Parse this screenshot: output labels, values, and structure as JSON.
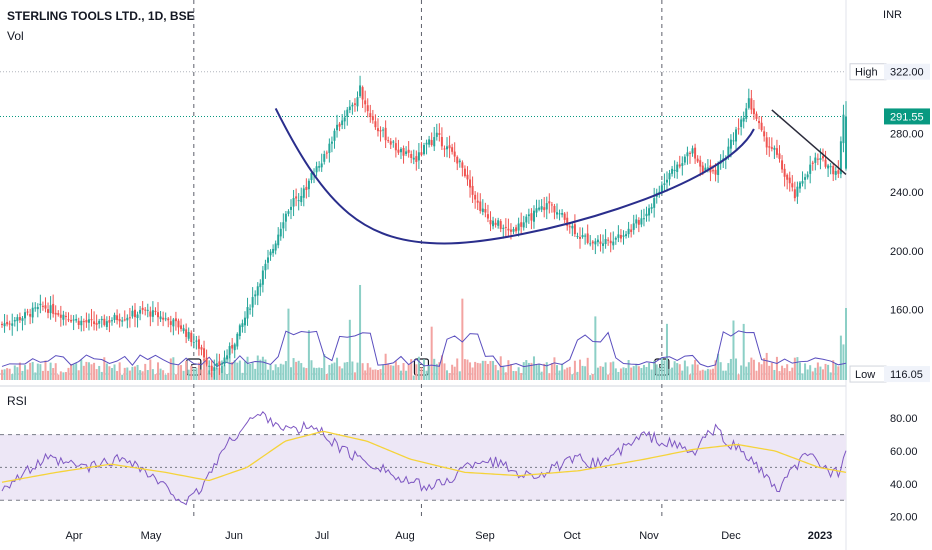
{
  "header": {
    "symbol_line": "STERLING TOOLS LTD., 1D, BSE",
    "vol_label": "Vol",
    "currency": "INR"
  },
  "rsi_label": "RSI",
  "price_labels": {
    "high_tag": "High",
    "high_value": "322.00",
    "low_tag": "Low",
    "low_value": "116.05",
    "last_value": "291.55"
  },
  "events": [
    "E",
    "E",
    "E"
  ],
  "colors": {
    "up": "#26a69a",
    "down": "#ef5350",
    "vol_up": "#8ccfc6",
    "vol_down": "#f3a3a1",
    "trend": "#2a2e8c",
    "rsi_line": "#7e57c2",
    "rsi_ma": "#f5d33a",
    "rsi_band": "#ede7f6",
    "last_price": "#089981"
  },
  "chart_data": [
    {
      "type": "candlestick",
      "title": "STERLING TOOLS LTD., 1D, BSE",
      "y_ticks": [
        "160.00",
        "200.00",
        "240.00",
        "280.00"
      ],
      "ylim": [
        112,
        330
      ],
      "x_ticks": [
        "Apr",
        "May",
        "Jun",
        "Jul",
        "Aug",
        "Sep",
        "Oct",
        "Nov",
        "Dec",
        "2023"
      ],
      "high": 322.0,
      "low": 116.05,
      "last": 291.55,
      "price_path": [
        [
          0,
          150
        ],
        [
          8,
          155
        ],
        [
          16,
          162
        ],
        [
          22,
          158
        ],
        [
          30,
          152
        ],
        [
          38,
          150
        ],
        [
          44,
          154
        ],
        [
          50,
          156
        ],
        [
          56,
          159
        ],
        [
          62,
          155
        ],
        [
          66,
          152
        ],
        [
          70,
          148
        ],
        [
          74,
          140
        ],
        [
          78,
          133
        ],
        [
          80,
          125
        ],
        [
          83,
          119
        ],
        [
          86,
          124
        ],
        [
          90,
          135
        ],
        [
          94,
          150
        ],
        [
          98,
          168
        ],
        [
          102,
          185
        ],
        [
          106,
          202
        ],
        [
          110,
          222
        ],
        [
          114,
          235
        ],
        [
          118,
          240
        ],
        [
          122,
          255
        ],
        [
          126,
          265
        ],
        [
          130,
          280
        ],
        [
          134,
          293
        ],
        [
          138,
          300
        ],
        [
          140,
          310
        ],
        [
          142,
          300
        ],
        [
          146,
          285
        ],
        [
          150,
          278
        ],
        [
          154,
          270
        ],
        [
          158,
          265
        ],
        [
          162,
          262
        ],
        [
          166,
          272
        ],
        [
          170,
          278
        ],
        [
          174,
          270
        ],
        [
          178,
          262
        ],
        [
          182,
          250
        ],
        [
          186,
          232
        ],
        [
          190,
          222
        ],
        [
          194,
          218
        ],
        [
          198,
          213
        ],
        [
          202,
          217
        ],
        [
          206,
          222
        ],
        [
          210,
          228
        ],
        [
          214,
          232
        ],
        [
          218,
          225
        ],
        [
          222,
          218
        ],
        [
          226,
          210
        ],
        [
          230,
          207
        ],
        [
          234,
          206
        ],
        [
          238,
          208
        ],
        [
          242,
          211
        ],
        [
          246,
          215
        ],
        [
          250,
          222
        ],
        [
          254,
          232
        ],
        [
          258,
          246
        ],
        [
          262,
          255
        ],
        [
          266,
          262
        ],
        [
          270,
          268
        ],
        [
          274,
          256
        ],
        [
          278,
          252
        ],
        [
          282,
          262
        ],
        [
          286,
          278
        ],
        [
          290,
          290
        ],
        [
          292,
          302
        ],
        [
          295,
          290
        ],
        [
          298,
          275
        ],
        [
          302,
          268
        ],
        [
          306,
          252
        ],
        [
          310,
          237
        ],
        [
          314,
          252
        ],
        [
          318,
          262
        ],
        [
          322,
          260
        ],
        [
          325,
          255
        ],
        [
          327,
          255
        ],
        [
          329,
          291.55
        ]
      ],
      "trendlines": [
        {
          "from": [
            107,
            297
          ],
          "to": [
            173,
            205
          ]
        },
        {
          "from": [
            173,
            205
          ],
          "to": [
            294,
            283
          ]
        },
        {
          "from": [
            301,
            296
          ],
          "to": [
            330,
            252
          ]
        }
      ]
    },
    {
      "type": "line",
      "title": "RSI",
      "y_ticks": [
        "20.00",
        "40.00",
        "60.00",
        "80.00"
      ],
      "ylim": [
        18,
        88
      ],
      "upper_band": 70,
      "middle_band": 50,
      "lower_band": 30,
      "rsi_path": [
        [
          0,
          38
        ],
        [
          8,
          46
        ],
        [
          16,
          55
        ],
        [
          24,
          52
        ],
        [
          32,
          50
        ],
        [
          40,
          54
        ],
        [
          46,
          56
        ],
        [
          52,
          48
        ],
        [
          58,
          40
        ],
        [
          64,
          33
        ],
        [
          68,
          28
        ],
        [
          72,
          35
        ],
        [
          76,
          45
        ],
        [
          80,
          58
        ],
        [
          84,
          66
        ],
        [
          88,
          74
        ],
        [
          92,
          80
        ],
        [
          96,
          82
        ],
        [
          100,
          78
        ],
        [
          104,
          74
        ],
        [
          108,
          72
        ],
        [
          112,
          75
        ],
        [
          116,
          73
        ],
        [
          120,
          68
        ],
        [
          124,
          62
        ],
        [
          128,
          58
        ],
        [
          132,
          55
        ],
        [
          136,
          52
        ],
        [
          140,
          50
        ],
        [
          146,
          42
        ],
        [
          152,
          40
        ],
        [
          158,
          38
        ],
        [
          164,
          42
        ],
        [
          170,
          50
        ],
        [
          176,
          55
        ],
        [
          182,
          53
        ],
        [
          188,
          48
        ],
        [
          194,
          45
        ],
        [
          200,
          47
        ],
        [
          206,
          52
        ],
        [
          212,
          55
        ],
        [
          218,
          52
        ],
        [
          224,
          57
        ],
        [
          230,
          63
        ],
        [
          236,
          70
        ],
        [
          242,
          66
        ],
        [
          248,
          63
        ],
        [
          254,
          58
        ],
        [
          258,
          68
        ],
        [
          262,
          73
        ],
        [
          266,
          66
        ],
        [
          270,
          62
        ],
        [
          274,
          56
        ],
        [
          278,
          50
        ],
        [
          282,
          40
        ],
        [
          286,
          36
        ],
        [
          290,
          48
        ],
        [
          294,
          55
        ],
        [
          297,
          57
        ],
        [
          300,
          53
        ],
        [
          304,
          48
        ],
        [
          307,
          46
        ],
        [
          310,
          63
        ]
      ],
      "rsi_ma_path": [
        [
          0,
          41
        ],
        [
          20,
          47
        ],
        [
          40,
          52
        ],
        [
          60,
          47
        ],
        [
          76,
          42
        ],
        [
          90,
          50
        ],
        [
          104,
          66
        ],
        [
          118,
          72
        ],
        [
          134,
          66
        ],
        [
          150,
          55
        ],
        [
          170,
          47
        ],
        [
          190,
          45
        ],
        [
          212,
          48
        ],
        [
          236,
          55
        ],
        [
          254,
          61
        ],
        [
          270,
          64
        ],
        [
          284,
          60
        ],
        [
          300,
          50
        ],
        [
          310,
          47
        ]
      ]
    }
  ]
}
